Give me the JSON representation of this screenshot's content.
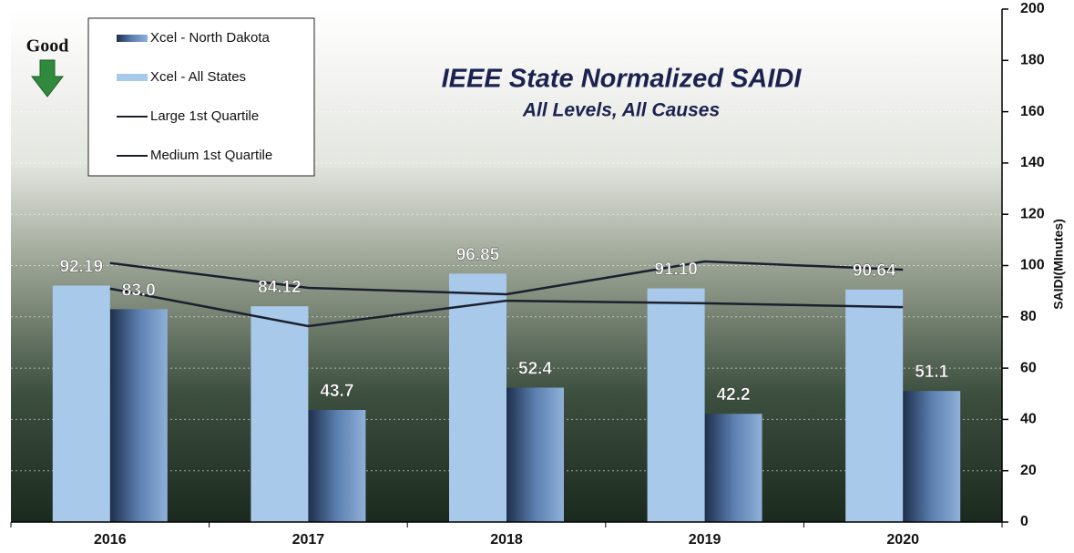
{
  "chart_data": {
    "type": "bar",
    "title": "IEEE State Normalized SAIDI",
    "subtitle": "All Levels, All Causes",
    "annotation": "Good",
    "y_axis_label": "SAIDI(MInutes)",
    "categories": [
      "2016",
      "2017",
      "2018",
      "2019",
      "2020"
    ],
    "series": [
      {
        "name": "Xcel - North Dakota",
        "type": "bar",
        "color": "#5b7fb0",
        "values": [
          83.0,
          43.7,
          52.4,
          42.2,
          51.1
        ],
        "value_labels": [
          "83.0",
          "43.7",
          "52.4",
          "42.2",
          "51.1"
        ]
      },
      {
        "name": "Xcel - All States",
        "type": "bar",
        "color": "#a9c9ea",
        "values": [
          92.19,
          84.12,
          96.85,
          91.1,
          90.64
        ],
        "value_labels": [
          "92.19",
          "84.12",
          "96.85",
          "91.10",
          "90.64"
        ]
      },
      {
        "name": "Large 1st Quartile",
        "type": "line",
        "color": "#1b1f2e",
        "values": [
          101,
          91.3,
          88.8,
          101.6,
          98.4
        ]
      },
      {
        "name": "Medium 1st Quartile",
        "type": "line",
        "color": "#1b1f2e",
        "values": [
          91,
          76.4,
          86.3,
          85.3,
          83.8
        ]
      }
    ],
    "ylim": [
      0,
      200
    ],
    "yticks": [
      0,
      20,
      40,
      60,
      80,
      100,
      120,
      140,
      160,
      180,
      200
    ],
    "grid": true
  }
}
